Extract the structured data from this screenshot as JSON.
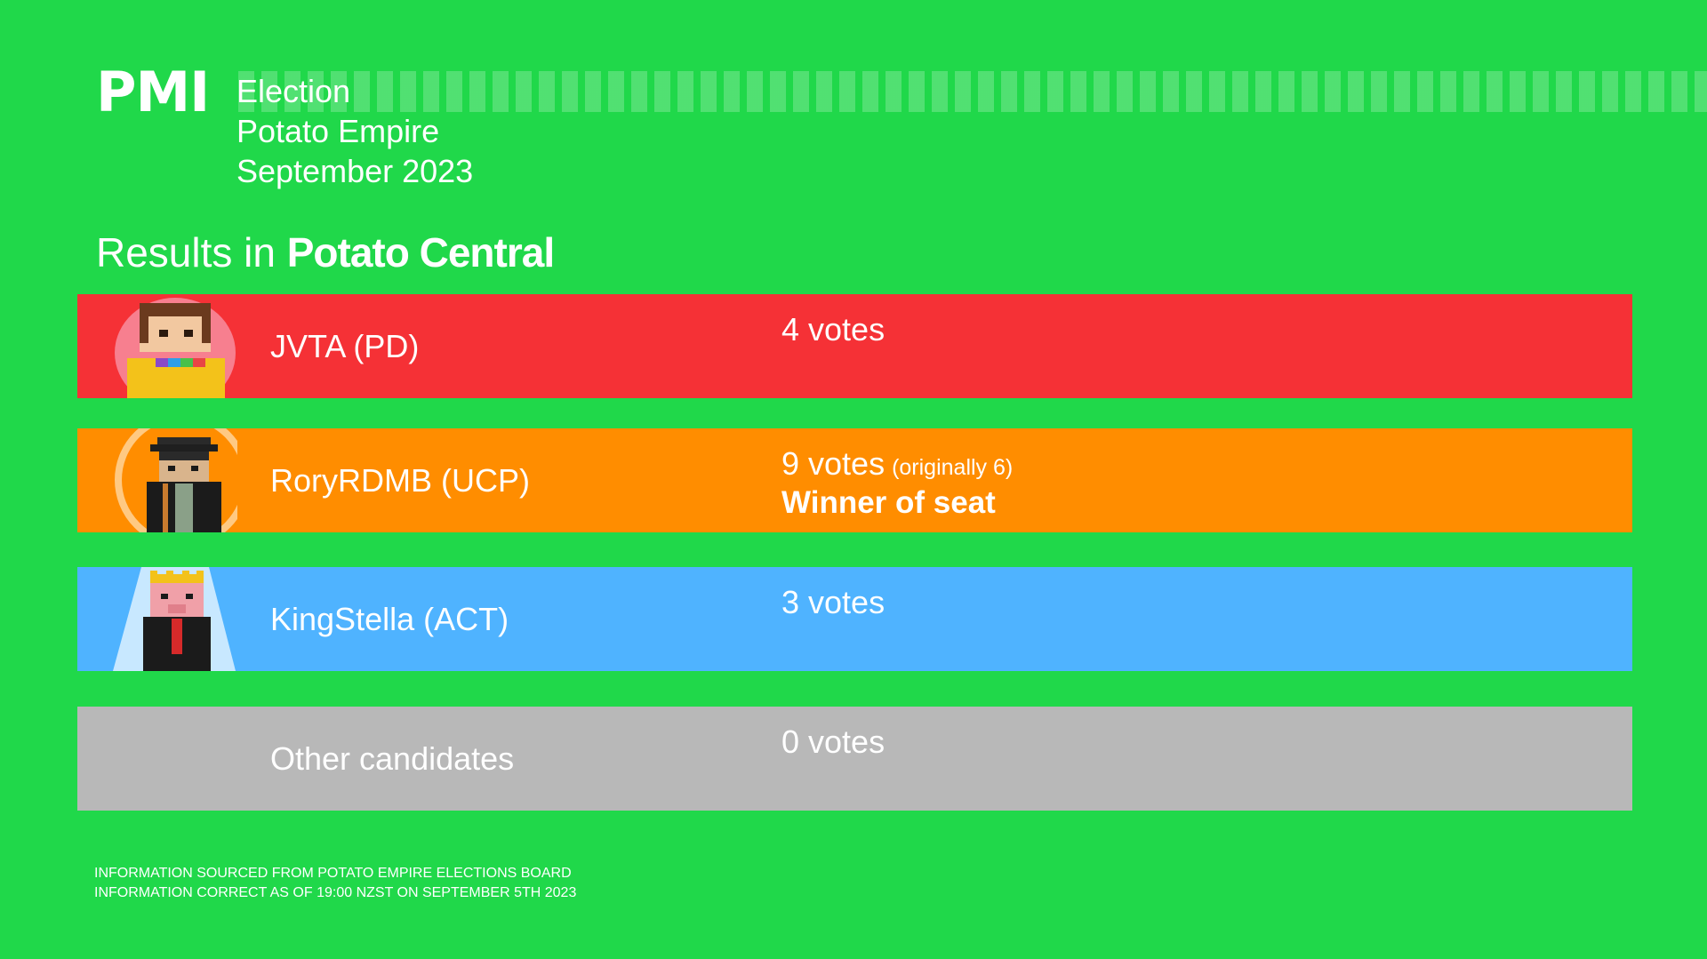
{
  "logo": "PMI",
  "header": {
    "line1": "Election",
    "line2": "Potato Empire",
    "line3": "September 2023"
  },
  "results": {
    "prefix": "Results in",
    "district": "Potato Central"
  },
  "candidates": [
    {
      "name": "JVTA (PD)",
      "votes": "4 votes",
      "color": "#f53136",
      "icon": "jvta-avatar-icon"
    },
    {
      "name": "RoryRDMB (UCP)",
      "votes": "9 votes",
      "votes_note": "(originally 6)",
      "winner": "Winner of seat",
      "color": "#ff8d00",
      "icon": "roryrdmb-avatar-icon"
    },
    {
      "name": "KingStella (ACT)",
      "votes": "3 votes",
      "color": "#4fb3ff",
      "icon": "kingstella-avatar-icon"
    },
    {
      "name": "Other candidates",
      "votes": "0 votes",
      "color": "#b8b8b8"
    }
  ],
  "footer": {
    "line1": "INFORMATION SOURCED FROM POTATO EMPIRE ELECTIONS BOARD",
    "line2": "INFORMATION CORRECT AS OF 19:00 NZST ON SEPTEMBER 5TH 2023"
  },
  "colors": {
    "background": "#20d84a",
    "text": "#ffffff"
  }
}
